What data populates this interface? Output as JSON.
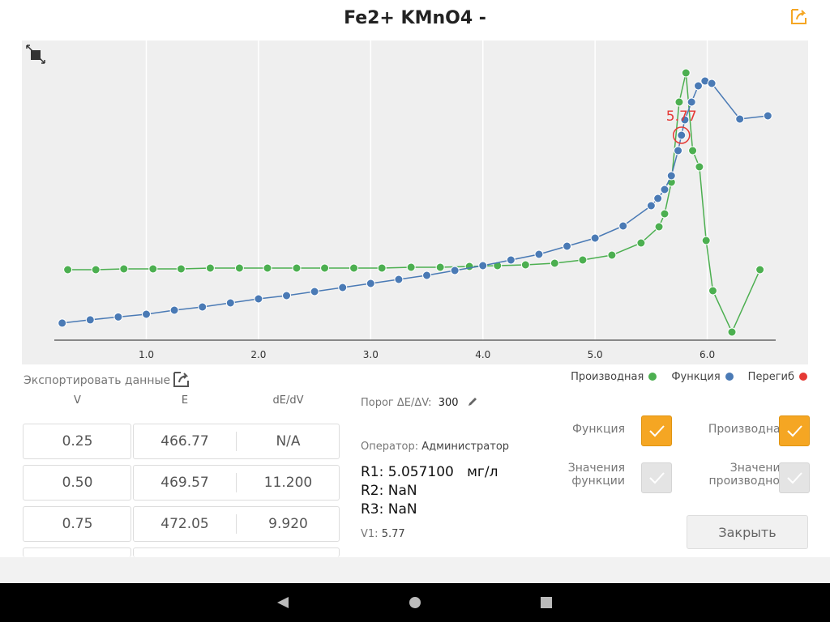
{
  "header": {
    "title": "Fe2+ KMnO4 -"
  },
  "chart_data": {
    "type": "line",
    "xlim": [
      0.18,
      6.61
    ],
    "xticks": [
      {
        "value": 1,
        "label": "1.0"
      },
      {
        "value": 2,
        "label": "2.0"
      },
      {
        "value": 3,
        "label": "3.0"
      },
      {
        "value": 4,
        "label": "4.0"
      },
      {
        "value": 5,
        "label": "5.0"
      },
      {
        "value": 6,
        "label": "6.0"
      }
    ],
    "ylim": [
      452,
      711
    ],
    "y2lim": [
      0,
      44.4
    ],
    "grid": true,
    "series": [
      {
        "name": "Производная",
        "color": "#4caf50",
        "axis": "y2",
        "x": [
          0.3,
          0.55,
          0.8,
          1.06,
          1.31,
          1.57,
          1.83,
          2.08,
          2.34,
          2.59,
          2.85,
          3.1,
          3.36,
          3.62,
          3.88,
          4.13,
          4.38,
          4.64,
          4.89,
          5.15,
          5.41,
          5.57,
          5.62,
          5.68,
          5.75,
          5.81,
          5.87,
          5.93,
          5.99,
          6.05,
          6.22,
          6.47
        ],
        "values": [
          10.44,
          10.44,
          10.56,
          10.56,
          10.56,
          10.68,
          10.68,
          10.68,
          10.68,
          10.68,
          10.68,
          10.68,
          10.8,
          10.8,
          10.92,
          11.04,
          11.16,
          11.4,
          11.88,
          12.6,
          14.4,
          16.8,
          18.72,
          23.4,
          35.28,
          39.6,
          28.08,
          25.68,
          14.76,
          7.32,
          1.2,
          10.44
        ]
      },
      {
        "name": "Функция",
        "color": "#4a7ab5",
        "x": [
          0.25,
          0.5,
          0.75,
          1.0,
          1.25,
          1.5,
          1.75,
          2.0,
          2.25,
          2.5,
          2.75,
          3.0,
          3.25,
          3.5,
          3.75,
          4.0,
          4.25,
          4.5,
          4.75,
          5.0,
          5.25,
          5.5,
          5.56,
          5.62,
          5.68,
          5.74,
          5.77,
          5.8,
          5.86,
          5.92,
          5.98,
          6.04,
          6.29,
          6.54
        ],
        "values": [
          466.77,
          469.57,
          472.05,
          474.4,
          477.9,
          480.7,
          484.2,
          487.7,
          490.5,
          494,
          497.5,
          501,
          504.5,
          508,
          512.2,
          516.4,
          521.3,
          526.2,
          533.2,
          540.2,
          550.7,
          568.2,
          574.5,
          582.2,
          594.1,
          615.8,
          629.1,
          642.4,
          657.8,
          671.8,
          676,
          673.9,
          643.1,
          645.9
        ]
      }
    ],
    "inflection": {
      "name": "Перегиб",
      "color": "#e53935",
      "x": 5.77,
      "y": 629.1,
      "label": "5.77"
    }
  },
  "export": {
    "label": "Экспортировать данные"
  },
  "table": {
    "headers": [
      "V",
      "E",
      "dE/dV"
    ],
    "rows": [
      [
        "0.25",
        "466.77",
        "N/A"
      ],
      [
        "0.50",
        "469.57",
        "11.200"
      ],
      [
        "0.75",
        "472.05",
        "9.920"
      ]
    ]
  },
  "info": {
    "threshold_label": "Порог ΔE/ΔV:",
    "threshold": "300",
    "operator_label": "Оператор:",
    "operator": "Администратор",
    "r1": "R1: 5.057100   мг/л",
    "r2": "R2: NaN",
    "r3": "R3: NaN",
    "v1_label": "V1:",
    "v1": "5.77"
  },
  "options": [
    {
      "label": "Функция",
      "checked": true
    },
    {
      "label": "Производная",
      "checked": true
    },
    {
      "label": "Значения функции",
      "checked": false
    },
    {
      "label": "Значения производной",
      "checked": false
    }
  ],
  "close_button": "Закрыть"
}
